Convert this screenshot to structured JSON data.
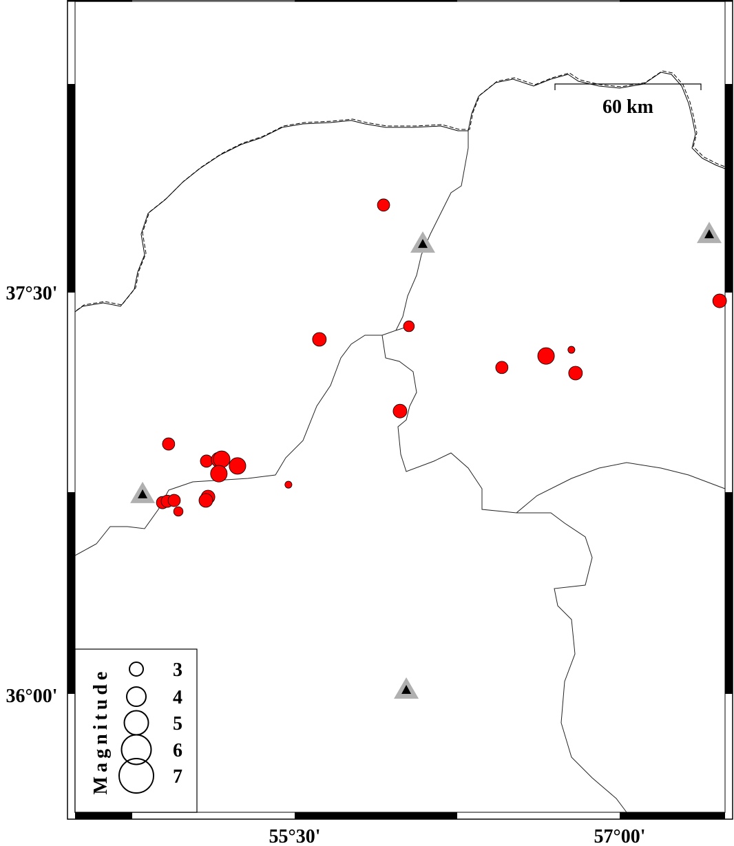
{
  "map": {
    "axis_labels": {
      "lat": [
        "37°30'",
        "36°00'"
      ],
      "lon": [
        "55°30'",
        "57°00'"
      ]
    },
    "scale_bar": {
      "label": "60 km"
    },
    "legend": {
      "title": "Magnitude",
      "entries": [
        {
          "mag": 3,
          "label": "3"
        },
        {
          "mag": 4,
          "label": "4"
        },
        {
          "mag": 5,
          "label": "5"
        },
        {
          "mag": 6,
          "label": "6"
        },
        {
          "mag": 7,
          "label": "7"
        }
      ]
    },
    "colors": {
      "event_fill": "#ff0000",
      "station_outer": "#b0b0b0",
      "station_inner": "#000000",
      "coastline": "#000000"
    },
    "events": [
      {
        "lon": 55.91,
        "lat": 37.827,
        "mag": 2.7
      },
      {
        "lon": 55.614,
        "lat": 37.325,
        "mag": 3.0
      },
      {
        "lon": 56.027,
        "lat": 37.374,
        "mag": 2.4
      },
      {
        "lon": 55.986,
        "lat": 37.057,
        "mag": 3.0
      },
      {
        "lon": 56.456,
        "lat": 37.22,
        "mag": 2.7
      },
      {
        "lon": 56.66,
        "lat": 37.263,
        "mag": 3.6
      },
      {
        "lon": 56.777,
        "lat": 37.286,
        "mag": 1.6
      },
      {
        "lon": 56.796,
        "lat": 37.199,
        "mag": 3.0
      },
      {
        "lon": 57.461,
        "lat": 37.469,
        "mag": 3.0
      },
      {
        "lon": 54.918,
        "lat": 36.934,
        "mag": 2.7
      },
      {
        "lon": 55.093,
        "lat": 36.87,
        "mag": 2.7
      },
      {
        "lon": 55.15,
        "lat": 36.875,
        "mag": 3.3
      },
      {
        "lon": 55.163,
        "lat": 36.877,
        "mag": 3.6
      },
      {
        "lon": 55.236,
        "lat": 36.852,
        "mag": 3.6
      },
      {
        "lon": 55.15,
        "lat": 36.823,
        "mag": 3.6
      },
      {
        "lon": 55.471,
        "lat": 36.782,
        "mag": 1.6
      },
      {
        "lon": 54.89,
        "lat": 36.715,
        "mag": 2.7
      },
      {
        "lon": 54.912,
        "lat": 36.72,
        "mag": 2.7
      },
      {
        "lon": 54.944,
        "lat": 36.723,
        "mag": 2.7
      },
      {
        "lon": 55.1,
        "lat": 36.736,
        "mag": 3.0
      },
      {
        "lon": 55.09,
        "lat": 36.723,
        "mag": 3.0
      },
      {
        "lon": 54.963,
        "lat": 36.682,
        "mag": 2.1
      }
    ],
    "stations": [
      {
        "lon": 54.798,
        "lat": 36.749
      },
      {
        "lon": 56.091,
        "lat": 37.685
      },
      {
        "lon": 57.413,
        "lat": 37.721
      },
      {
        "lon": 56.015,
        "lat": 36.018
      }
    ]
  }
}
